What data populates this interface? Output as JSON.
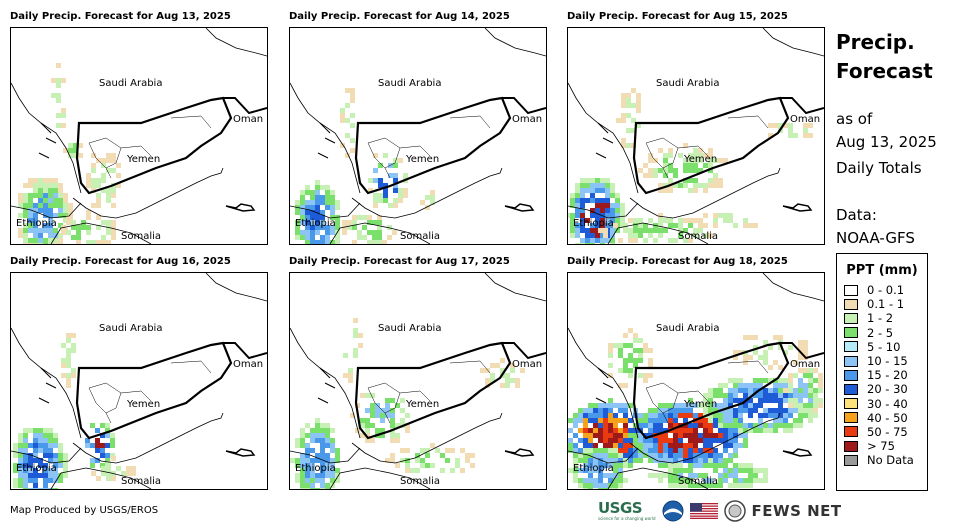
{
  "panels": [
    {
      "title": "Daily Precip. Forecast for Aug 13, 2025",
      "day": 0
    },
    {
      "title": "Daily Precip. Forecast for Aug 14, 2025",
      "day": 1
    },
    {
      "title": "Daily Precip. Forecast for Aug 15, 2025",
      "day": 2
    },
    {
      "title": "Daily Precip. Forecast for Aug 16, 2025",
      "day": 3
    },
    {
      "title": "Daily Precip. Forecast for Aug 17, 2025",
      "day": 4
    },
    {
      "title": "Daily Precip. Forecast for Aug 18, 2025",
      "day": 5
    }
  ],
  "map_labels": {
    "saudi_arabia": "Saudi Arabia",
    "oman": "Oman",
    "yemen": "Yemen",
    "ethiopia": "Ethiopia",
    "somalia": "Somalia"
  },
  "sidebar": {
    "title_line1": "Precip.",
    "title_line2": "Forecast",
    "as_of": "as of",
    "date": "Aug 13, 2025",
    "totals": "Daily Totals",
    "data_label": "Data:",
    "data_source": "NOAA-GFS"
  },
  "legend": {
    "title": "PPT (mm)",
    "items": [
      {
        "label": "0 - 0.1",
        "color": "#ffffff"
      },
      {
        "label": "0.1 - 1",
        "color": "#f2dcb4"
      },
      {
        "label": "1 - 2",
        "color": "#c7f0b4"
      },
      {
        "label": "2 - 5",
        "color": "#7be06b"
      },
      {
        "label": "5 - 10",
        "color": "#b4ecf7"
      },
      {
        "label": "10 - 15",
        "color": "#8cc4f5"
      },
      {
        "label": "15 - 20",
        "color": "#4a98ea"
      },
      {
        "label": "20 - 30",
        "color": "#1d5cd6"
      },
      {
        "label": "30 - 40",
        "color": "#ffe27a"
      },
      {
        "label": "40 - 50",
        "color": "#f7a21b"
      },
      {
        "label": "50 - 75",
        "color": "#ea3a12"
      },
      {
        "label": "> 75",
        "color": "#9e1a1a"
      },
      {
        "label": "No Data",
        "color": "#999999"
      }
    ]
  },
  "footer": {
    "credit": "Map Produced by USGS/EROS",
    "usgs": "USGS",
    "usgs_tagline": "science for a changing world",
    "fews": "FEWS NET"
  }
}
